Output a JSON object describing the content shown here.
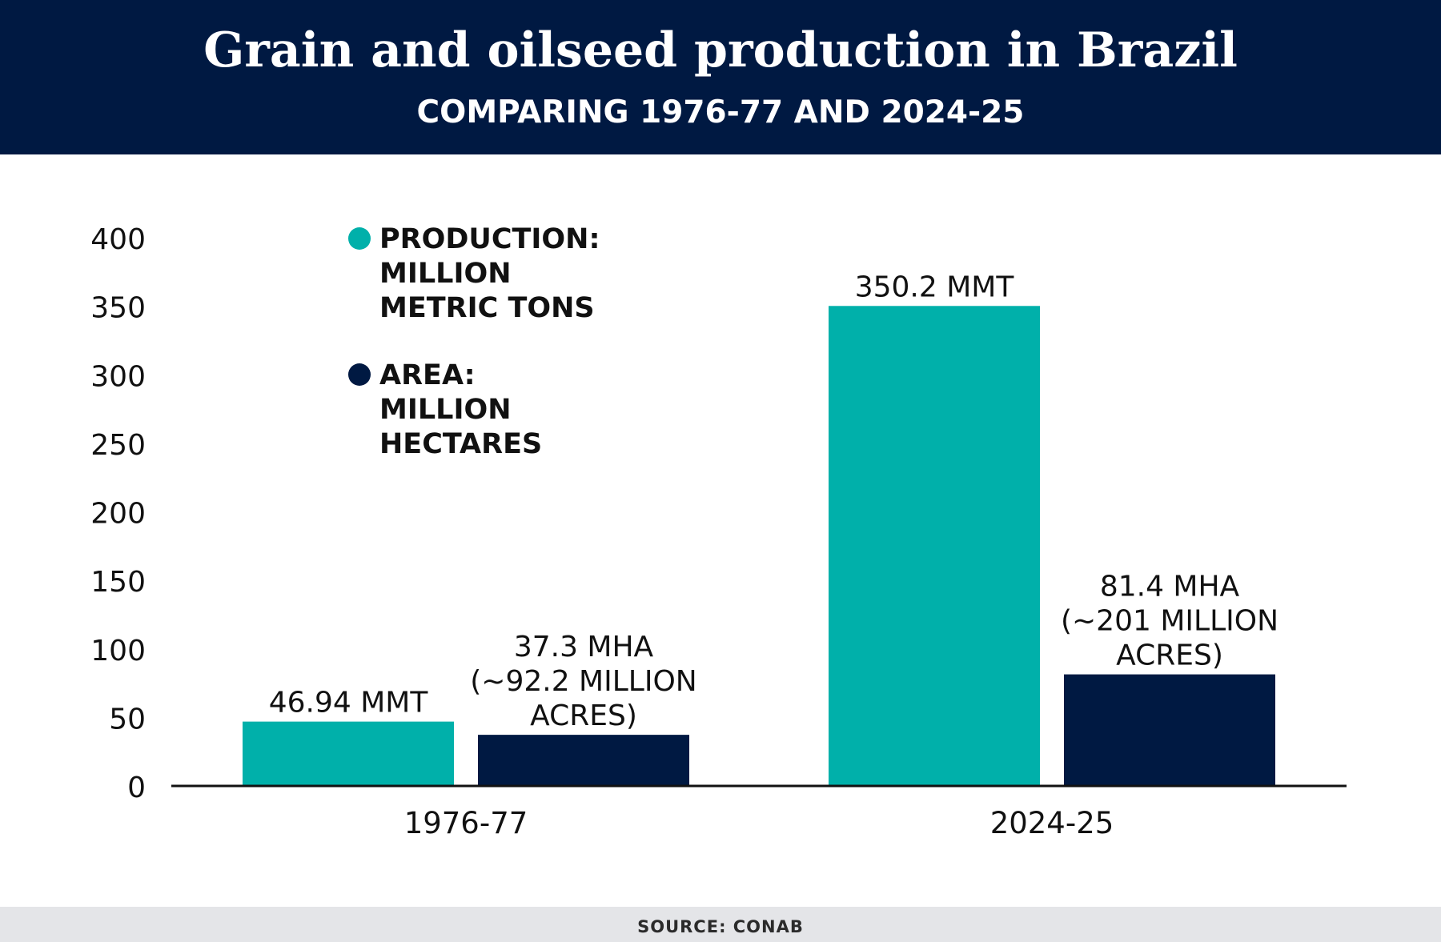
{
  "chart_data": {
    "type": "bar",
    "title": "Grain and oilseed production in Brazil",
    "subtitle": "COMPARING 1976-77 AND 2024-25",
    "categories": [
      "1976-77",
      "2024-25"
    ],
    "series": [
      {
        "name": "PRODUCTION: MILLION METRIC TONS",
        "legend_lines": [
          "PRODUCTION:",
          "MILLION",
          "METRIC TONS"
        ],
        "color": "#00b0aa",
        "values": [
          46.94,
          350.2
        ],
        "labels": [
          [
            "46.94 MMT"
          ],
          [
            "350.2 MMT"
          ]
        ]
      },
      {
        "name": "AREA: MILLION HECTARES",
        "legend_lines": [
          "AREA:",
          "MILLION",
          "HECTARES"
        ],
        "color": "#001942",
        "values": [
          37.3,
          81.4
        ],
        "labels": [
          [
            "37.3 MHA",
            "(~92.2 MILLION",
            "ACRES)"
          ],
          [
            "81.4 MHA",
            "(~201 MILLION",
            "ACRES)"
          ]
        ]
      }
    ],
    "yticks": [
      0,
      50,
      100,
      150,
      200,
      250,
      300,
      350,
      400
    ],
    "ylim": [
      0,
      400
    ],
    "xlabel": "",
    "ylabel": "",
    "grid": false,
    "legend_position": "top-left"
  },
  "source": "SOURCE: CONAB",
  "colors": {
    "header_bg": "#001942",
    "footer_bg": "#e4e5e8",
    "production": "#00b0aa",
    "area": "#001942"
  }
}
